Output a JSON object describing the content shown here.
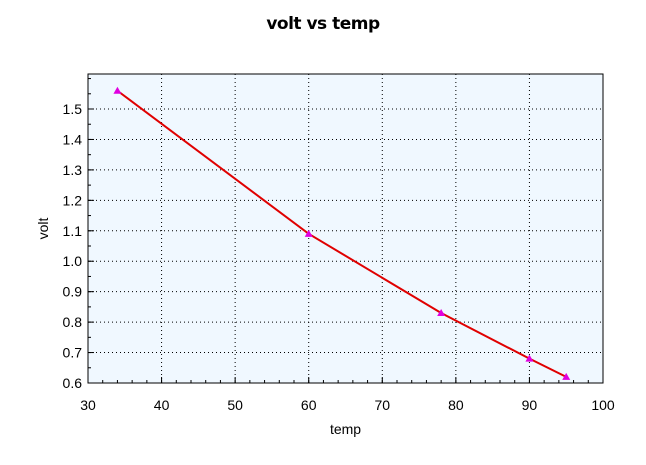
{
  "chart_data": {
    "type": "line",
    "title": "volt vs temp",
    "xlabel": "temp",
    "ylabel": "volt",
    "xlim": [
      30,
      100
    ],
    "ylim": [
      0.6,
      1.6
    ],
    "x_ticks": [
      30,
      40,
      50,
      60,
      70,
      80,
      90,
      100
    ],
    "y_ticks": [
      "0.6",
      "0.7",
      "0.8",
      "0.9",
      "1.0",
      "1.1",
      "1.2",
      "1.3",
      "1.4",
      "1.5"
    ],
    "grid": true,
    "series": [
      {
        "x": [
          34,
          60,
          78,
          90,
          95
        ],
        "y": [
          1.56,
          1.09,
          0.83,
          0.68,
          0.62
        ],
        "line_color": "#e00000",
        "marker_color": "#e000e0",
        "marker": "triangle"
      }
    ],
    "colors": {
      "plot_background": "#f0f8ff"
    }
  }
}
